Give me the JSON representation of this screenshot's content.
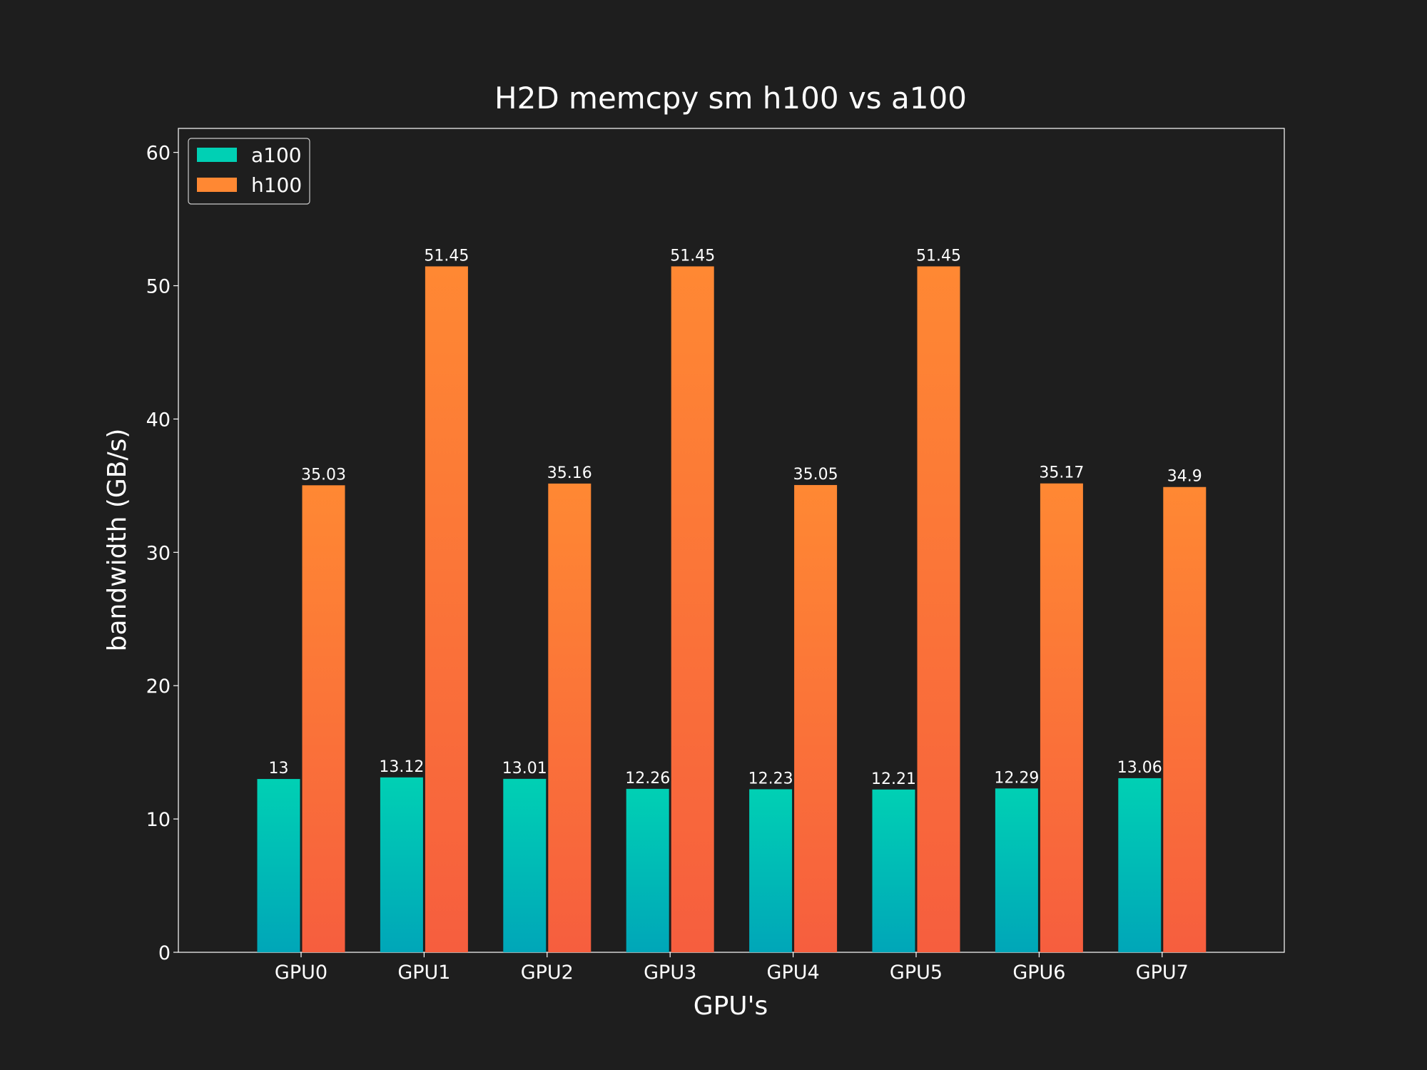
{
  "chart_data": {
    "type": "bar",
    "title": "H2D memcpy sm h100 vs a100",
    "xlabel": "GPU's",
    "ylabel": "bandwidth (GB/s)",
    "categories": [
      "GPU0",
      "GPU1",
      "GPU2",
      "GPU3",
      "GPU4",
      "GPU5",
      "GPU6",
      "GPU7"
    ],
    "series": [
      {
        "name": "a100",
        "values": [
          13,
          13.12,
          13.01,
          12.26,
          12.23,
          12.21,
          12.29,
          13.06
        ],
        "labels": [
          "13",
          "13.12",
          "13.01",
          "12.26",
          "12.23",
          "12.21",
          "12.29",
          "13.06"
        ],
        "color_top": "#00d0b4",
        "color_bottom": "#00a6b8"
      },
      {
        "name": "h100",
        "values": [
          35.03,
          51.45,
          35.16,
          51.45,
          35.05,
          51.45,
          35.17,
          34.9
        ],
        "labels": [
          "35.03",
          "51.45",
          "35.16",
          "51.45",
          "35.05",
          "51.45",
          "35.17",
          "34.9"
        ],
        "color_top": "#ff8833",
        "color_bottom": "#f65e3e"
      }
    ],
    "ylim": [
      0,
      61.8
    ],
    "yticks": [
      0,
      10,
      20,
      30,
      40,
      50,
      60
    ],
    "grid": false,
    "legend": "top-left",
    "background": "#1e1e1e",
    "axes_color": "#ffffff"
  }
}
